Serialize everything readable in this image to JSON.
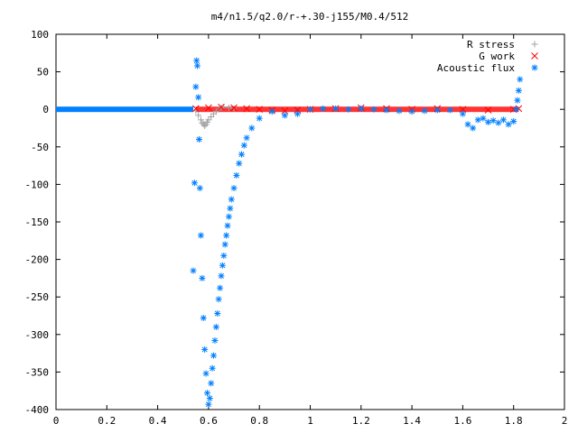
{
  "chart_data": {
    "type": "scatter",
    "title": "m4/n1.5/q2.0/r-+.30-j155/M0.4/512",
    "xlabel": "",
    "ylabel": "",
    "xlim": [
      0,
      2
    ],
    "ylim": [
      -400,
      100
    ],
    "xticks": [
      0,
      0.2,
      0.4,
      0.6,
      0.8,
      1,
      1.2,
      1.4,
      1.6,
      1.8,
      2
    ],
    "xtick_labels": [
      "0",
      "0.2",
      "0.4",
      "0.6",
      "0.8",
      "1",
      "1.2",
      "1.4",
      "1.6",
      "1.8",
      "2"
    ],
    "yticks": [
      100,
      50,
      0,
      -50,
      -100,
      -150,
      -200,
      -250,
      -300,
      -350,
      -400
    ],
    "ytick_labels": [
      "100",
      "50",
      "0",
      "-50",
      "-100",
      "-150",
      "-200",
      "-250",
      "-300",
      "-350",
      "-400"
    ],
    "grid": false,
    "legend_position": "top-right",
    "series": [
      {
        "name": "R stress",
        "marker": "plus",
        "color": "#a0a0a0",
        "x": [
          0.55,
          0.56,
          0.57,
          0.575,
          0.58,
          0.585,
          0.59,
          0.595,
          0.6,
          0.61,
          0.62,
          0.63,
          0.64,
          0.65,
          0.66,
          0.68,
          0.7
        ],
        "y": [
          -2,
          -8,
          -14,
          -18,
          -20,
          -22,
          -20,
          -17,
          -14,
          -10,
          -6,
          -3,
          0,
          2,
          3,
          2,
          1
        ]
      },
      {
        "name": "G work",
        "marker": "cross",
        "color": "#ff0000",
        "x": [
          0.55,
          0.6,
          0.65,
          0.7,
          0.75,
          0.8,
          0.85,
          0.9,
          0.95,
          1.0,
          1.1,
          1.2,
          1.3,
          1.4,
          1.5,
          1.6,
          1.7,
          1.8,
          1.82
        ],
        "y": [
          1,
          2,
          3,
          2,
          1,
          0,
          -1,
          -2,
          -1,
          0,
          1,
          2,
          1,
          0,
          1,
          0,
          -1,
          0,
          1
        ]
      },
      {
        "name": "Acoustic flux",
        "marker": "star",
        "color": "#0080ff",
        "x": [
          0.54,
          0.545,
          0.55,
          0.553,
          0.556,
          0.56,
          0.563,
          0.566,
          0.57,
          0.575,
          0.58,
          0.585,
          0.59,
          0.595,
          0.6,
          0.605,
          0.61,
          0.615,
          0.62,
          0.625,
          0.63,
          0.635,
          0.64,
          0.645,
          0.65,
          0.655,
          0.66,
          0.665,
          0.67,
          0.675,
          0.68,
          0.685,
          0.69,
          0.7,
          0.71,
          0.72,
          0.73,
          0.74,
          0.75,
          0.77,
          0.8,
          0.85,
          0.9,
          0.95,
          1.0,
          1.05,
          1.1,
          1.15,
          1.2,
          1.25,
          1.3,
          1.35,
          1.4,
          1.45,
          1.5,
          1.55,
          1.6,
          1.62,
          1.64,
          1.66,
          1.68,
          1.7,
          1.72,
          1.74,
          1.76,
          1.78,
          1.8,
          1.81,
          1.815,
          1.82,
          1.825
        ],
        "y": [
          -215,
          -98,
          30,
          65,
          58,
          16,
          -40,
          -105,
          -168,
          -225,
          -278,
          -320,
          -352,
          -378,
          -393,
          -385,
          -365,
          -345,
          -328,
          -308,
          -290,
          -272,
          -253,
          -238,
          -222,
          -208,
          -195,
          -180,
          -168,
          -155,
          -143,
          -132,
          -120,
          -105,
          -88,
          -72,
          -60,
          -48,
          -38,
          -25,
          -12,
          -3,
          -8,
          -6,
          0,
          1,
          1,
          0,
          1,
          0,
          -1,
          -2,
          -3,
          -2,
          -1,
          -1,
          -6,
          -20,
          -25,
          -14,
          -12,
          -17,
          -15,
          -18,
          -14,
          -20,
          -16,
          0,
          12,
          25,
          40
        ]
      }
    ]
  }
}
